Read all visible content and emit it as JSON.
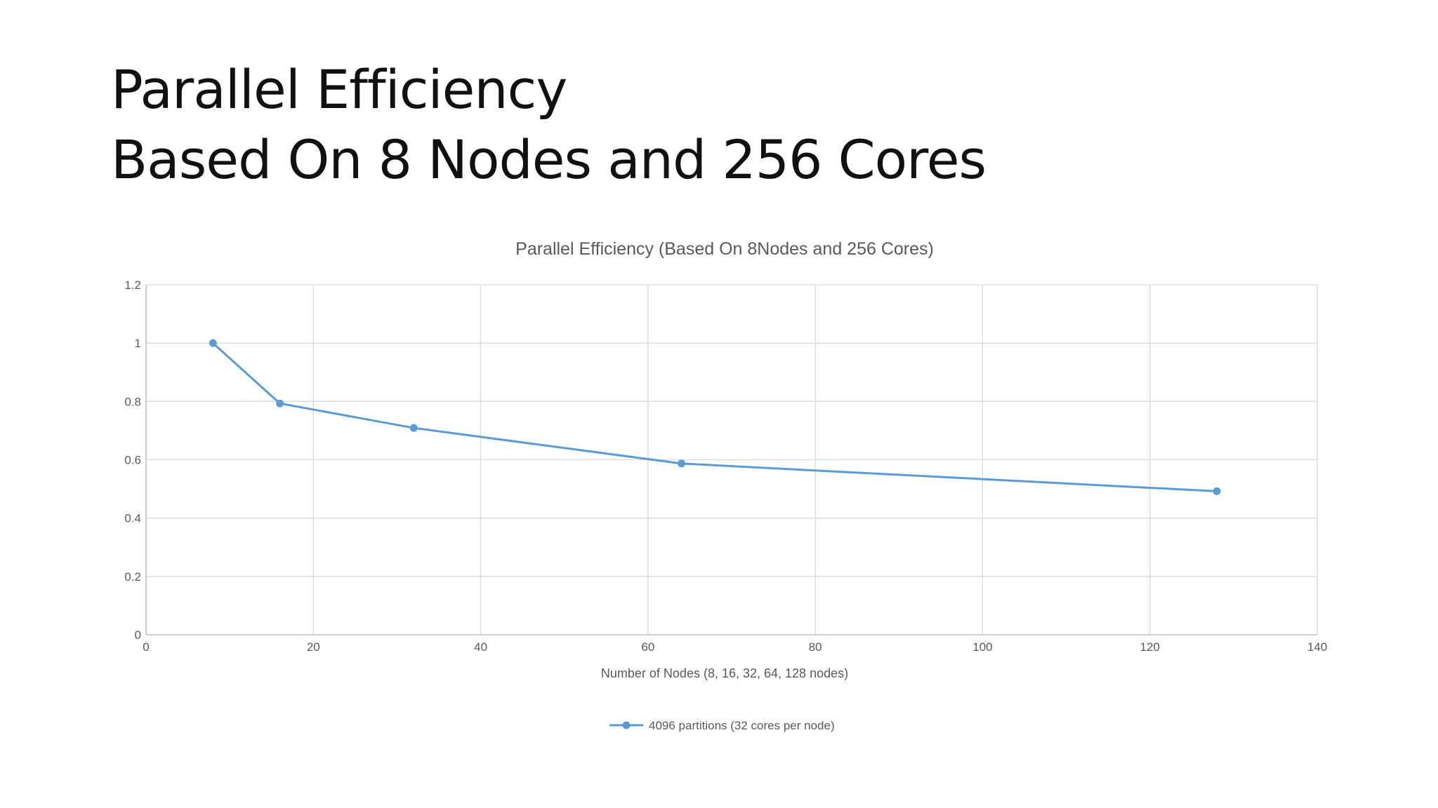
{
  "slide": {
    "title_line1": "Parallel Efficiency",
    "title_line2": "Based On 8 Nodes and 256 Cores"
  },
  "colors": {
    "series": "#5b9bd5",
    "grid": "#d9d9d9",
    "axis": "#bfbfbf",
    "text": "#595959"
  },
  "chart_data": {
    "type": "line",
    "title": "Parallel Efficiency (Based On 8Nodes and 256 Cores)",
    "xlabel": "Number of Nodes (8, 16, 32, 64, 128 nodes)",
    "ylabel": "",
    "xlim": [
      0,
      140
    ],
    "ylim": [
      0,
      1.2
    ],
    "xticks": [
      0,
      20,
      40,
      60,
      80,
      100,
      120,
      140
    ],
    "yticks": [
      0,
      0.2,
      0.4,
      0.6,
      0.8,
      1,
      1.2
    ],
    "xtick_labels": [
      "0",
      "20",
      "40",
      "60",
      "80",
      "100",
      "120",
      "140"
    ],
    "ytick_labels": [
      "0",
      "0.2",
      "0.4",
      "0.6",
      "0.8",
      "1",
      "1.2"
    ],
    "grid": true,
    "legend_position": "bottom",
    "series": [
      {
        "name": "4096 partitions (32 cores per node)",
        "x": [
          8,
          16,
          32,
          64,
          128
        ],
        "y": [
          1.0,
          0.793,
          0.709,
          0.587,
          0.492
        ]
      }
    ]
  }
}
